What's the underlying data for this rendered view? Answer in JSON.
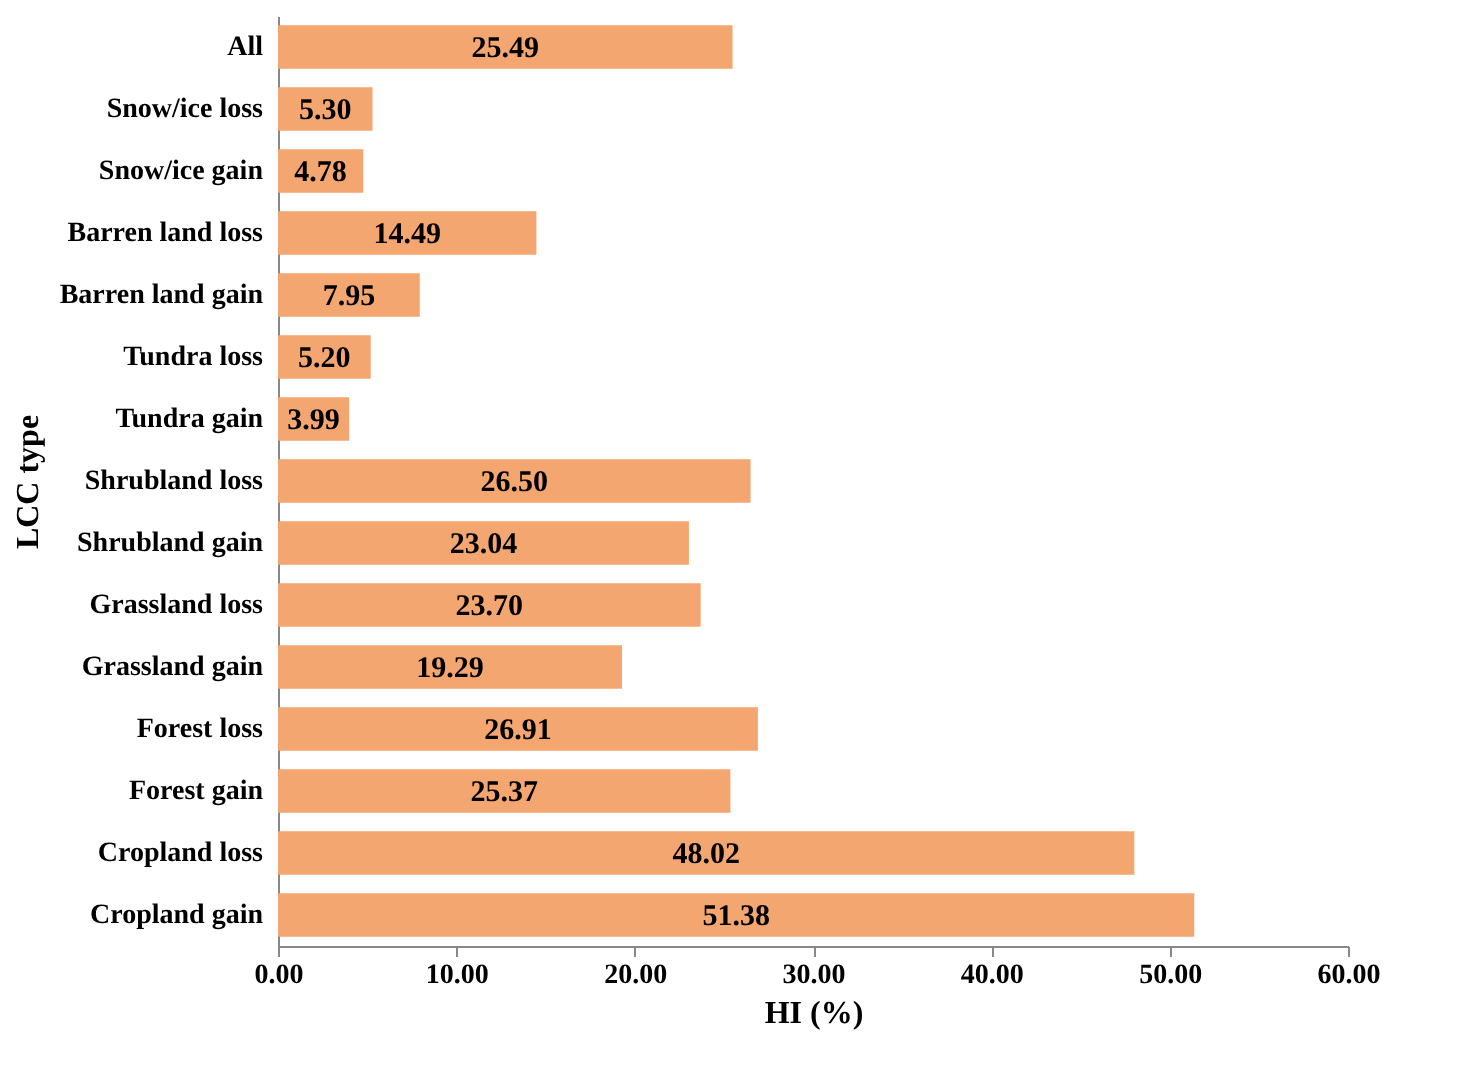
{
  "chart_data": {
    "type": "bar",
    "orientation": "horizontal",
    "xlabel": "HI (%)",
    "ylabel": "LCC type",
    "categories": [
      "All",
      "Snow/ice loss",
      "Snow/ice gain",
      "Barren land loss",
      "Barren land gain",
      "Tundra loss",
      "Tundra gain",
      "Shrubland loss",
      "Shrubland gain",
      "Grassland loss",
      "Grassland gain",
      "Forest loss",
      "Forest gain",
      "Cropland loss",
      "Cropland gain"
    ],
    "values": [
      25.49,
      5.3,
      4.78,
      14.49,
      7.95,
      5.2,
      3.99,
      26.5,
      23.04,
      23.7,
      19.29,
      26.91,
      25.37,
      48.02,
      51.38
    ],
    "value_labels": [
      "25.49",
      "5.30",
      "4.78",
      "14.49",
      "7.95",
      "5.20",
      "3.99",
      "26.50",
      "23.04",
      "23.70",
      "19.29",
      "26.91",
      "25.37",
      "48.02",
      "51.38"
    ],
    "color": "#f4a671",
    "xlim": [
      0,
      60
    ],
    "xticks": [
      {
        "value": 0,
        "label": "0.00"
      },
      {
        "value": 10,
        "label": "10.00"
      },
      {
        "value": 20,
        "label": "20.00"
      },
      {
        "value": 30,
        "label": "30.00"
      },
      {
        "value": 40,
        "label": "40.00"
      },
      {
        "value": 50,
        "label": "50.00"
      },
      {
        "value": 60,
        "label": "60.00"
      }
    ],
    "grid": false
  }
}
